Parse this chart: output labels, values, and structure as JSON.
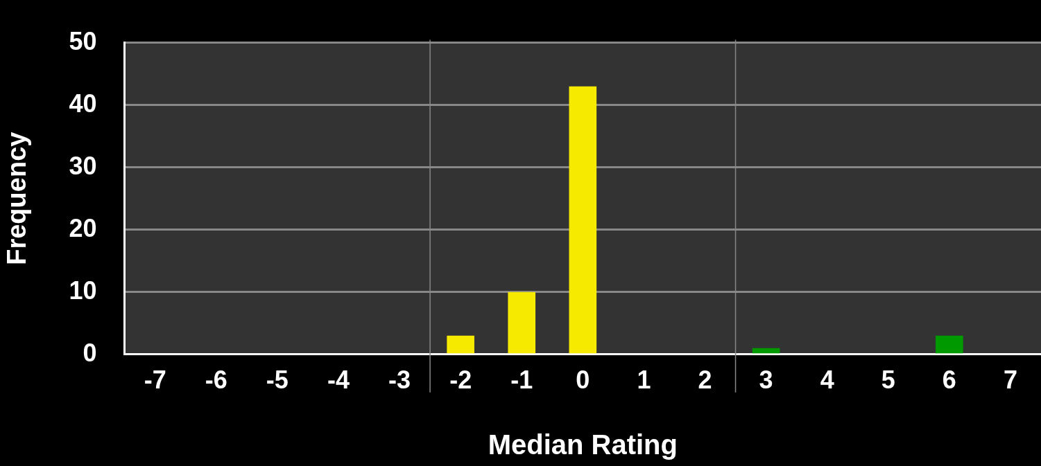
{
  "chart_data": {
    "type": "bar",
    "xlabel": "Median Rating",
    "ylabel": "Frequency",
    "x": [
      -7,
      -6,
      -5,
      -4,
      -3,
      -2,
      -1,
      0,
      1,
      2,
      3,
      4,
      5,
      6,
      7
    ],
    "values": [
      0,
      0,
      0,
      0,
      0,
      3,
      10,
      43,
      0,
      0,
      1,
      0,
      0,
      3,
      0
    ],
    "colors": [
      "#f5ea00",
      "#f5ea00",
      "#f5ea00",
      "#f5ea00",
      "#f5ea00",
      "#f5ea00",
      "#f5ea00",
      "#f5ea00",
      "#009900",
      "#009900",
      "#009900",
      "#009900",
      "#009900",
      "#009900",
      "#009900"
    ],
    "xlim": [
      -7.5,
      7.5
    ],
    "xticks": [
      -7,
      -6,
      -5,
      -4,
      -3,
      -2,
      -1,
      0,
      1,
      2,
      3,
      4,
      5,
      6,
      7
    ],
    "ylim": [
      0,
      50
    ],
    "yticks": [
      0,
      10,
      20,
      30,
      40,
      50
    ],
    "grid": "y",
    "ref_lines": [
      {
        "axis": "x",
        "value": -2.5,
        "color": "#888888"
      },
      {
        "axis": "x",
        "value": 2.5,
        "color": "#888888"
      }
    ],
    "legend": false
  }
}
